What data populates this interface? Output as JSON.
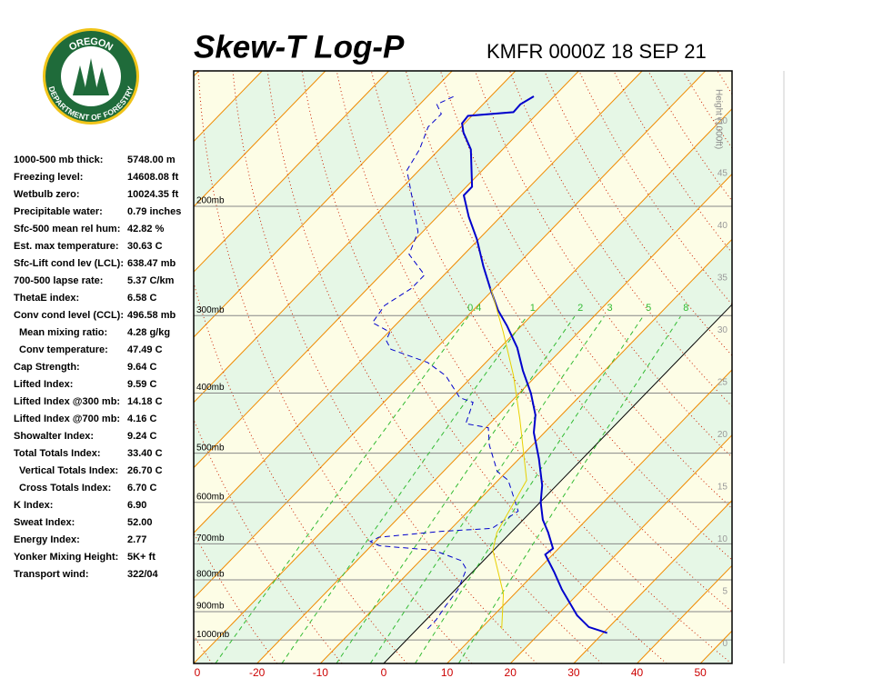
{
  "logo": {
    "top": "OREGON",
    "bottom": "DEPARTMENT OF FORESTRY"
  },
  "stats": [
    {
      "label": "1000-500 mb thick:",
      "value": "5748.00 m"
    },
    {
      "label": "Freezing level:",
      "value": "14608.08 ft"
    },
    {
      "label": "Wetbulb zero:",
      "value": "10024.35 ft"
    },
    {
      "label": "Precipitable water:",
      "value": "0.79 inches"
    },
    {
      "label": "Sfc-500 mean rel hum:",
      "value": "42.82 %"
    },
    {
      "label": "Est. max temperature:",
      "value": "30.63 C"
    },
    {
      "label": "Sfc-Lift cond lev (LCL):",
      "value": "638.47 mb"
    },
    {
      "label": "700-500 lapse rate:",
      "value": "5.37 C/km"
    },
    {
      "label": "ThetaE index:",
      "value": "6.58 C"
    },
    {
      "label": "Conv cond level (CCL):",
      "value": "496.58 mb"
    },
    {
      "label": "Mean mixing ratio:",
      "value": "4.28 g/kg"
    },
    {
      "label": "Conv temperature:",
      "value": "47.49 C"
    },
    {
      "label": "Cap Strength:",
      "value": "9.64 C"
    },
    {
      "label": "Lifted Index:",
      "value": "9.59 C"
    },
    {
      "label": "Lifted Index @300 mb:",
      "value": "14.18 C"
    },
    {
      "label": "Lifted Index @700 mb:",
      "value": "4.16 C"
    },
    {
      "label": "Showalter Index:",
      "value": "9.24 C"
    },
    {
      "label": "Total Totals Index:",
      "value": "33.40 C"
    },
    {
      "label": "Vertical Totals Index:",
      "value": "26.70 C"
    },
    {
      "label": "Cross Totals Index:",
      "value": "6.70 C"
    },
    {
      "label": "K Index:",
      "value": "6.90"
    },
    {
      "label": "Sweat Index:",
      "value": "52.00"
    },
    {
      "label": "Energy Index:",
      "value": "2.77"
    },
    {
      "label": "Yonker Mixing Height:",
      "value": "5K+ ft"
    },
    {
      "label": "Transport wind:",
      "value": "322/04"
    }
  ],
  "chart_data": {
    "type": "skewt",
    "title": "Skew-T Log-P",
    "subtitle": "KMFR 0000Z 18 SEP 21",
    "xlim": [
      -30,
      55
    ],
    "xticks": [
      {
        "value": -30,
        "label": "0"
      },
      -20,
      -10,
      0,
      10,
      20,
      30,
      40,
      50
    ],
    "ylim": [
      1091,
      121
    ],
    "log_y": true,
    "yticks": [
      {
        "value": 200,
        "label": "200mb"
      },
      {
        "value": 300,
        "label": "300mb"
      },
      {
        "value": 400,
        "label": "400mb"
      },
      {
        "value": 500,
        "label": "500mb"
      },
      {
        "value": 600,
        "label": "600mb"
      },
      {
        "value": 700,
        "label": "700mb"
      },
      {
        "value": 800,
        "label": "800mb"
      },
      {
        "value": 900,
        "label": "900mb"
      },
      {
        "value": 1000,
        "label": "1000mb"
      }
    ],
    "y2label": "Height (1000ft)",
    "y2lim": [
      -1.9,
      54.8
    ],
    "y2ticks": [
      0,
      5,
      10,
      15,
      20,
      25,
      30,
      35,
      40,
      45,
      50
    ],
    "mixing_ratios": [
      0.4,
      1,
      2,
      3,
      5,
      8
    ],
    "series": [
      {
        "color": "#0000cc",
        "dashed": false,
        "p": [
          974,
          953,
          913,
          829,
          777,
          728,
          712,
          671,
          640,
          600,
          563,
          510,
          463,
          434,
          400,
          368,
          338,
          312,
          294,
          271,
          250,
          226,
          208,
          192,
          186,
          162,
          152,
          147,
          143,
          141,
          137,
          133
        ],
        "values": [
          30.6,
          26.8,
          23.2,
          16.8,
          12.9,
          8.8,
          9.1,
          5.9,
          3.1,
          0.1,
          -2.3,
          -6.9,
          -11.7,
          -14.1,
          -18.2,
          -22.9,
          -27.3,
          -32.2,
          -36.1,
          -40.7,
          -45.1,
          -50.3,
          -55,
          -59.1,
          -59.1,
          -65,
          -68.8,
          -70.4,
          -70.6,
          -64,
          -64.1,
          -63.2
        ]
      },
      {
        "color": "#0000cc",
        "dashed": true,
        "p": [
          959,
          928,
          884,
          829,
          769,
          745,
          717,
          705,
          694,
          683,
          668,
          661,
          620,
          553,
          535,
          485,
          455,
          448,
          414,
          407,
          375,
          357,
          340,
          329,
          319,
          308,
          289,
          271,
          258,
          239,
          220,
          196,
          175,
          162,
          149,
          142,
          137,
          133
        ],
        "values": [
          1.6,
          1.6,
          1.0,
          0.4,
          -1.4,
          -3.5,
          -9.4,
          -18.7,
          -20.8,
          -20.1,
          -11.1,
          -3.6,
          -2.1,
          -8.4,
          -11.5,
          -16.8,
          -19.6,
          -23.8,
          -25.9,
          -28.7,
          -34.3,
          -39.2,
          -47,
          -49.1,
          -49.8,
          -54,
          -54.7,
          -53.1,
          -53.1,
          -58.7,
          -60.7,
          -66.3,
          -71.9,
          -73.1,
          -75.2,
          -75.1,
          -77.3,
          -75.8
        ]
      },
      {
        "color": "#e8d000",
        "dashed": false,
        "p": [
          959,
          842,
          717,
          671,
          553,
          441,
          375,
          319,
          271
        ],
        "values": [
          13.3,
          8.2,
          -0.1,
          -2.2,
          -5.5,
          -15.9,
          -23.6,
          -31.9,
          -40.6
        ]
      }
    ]
  }
}
